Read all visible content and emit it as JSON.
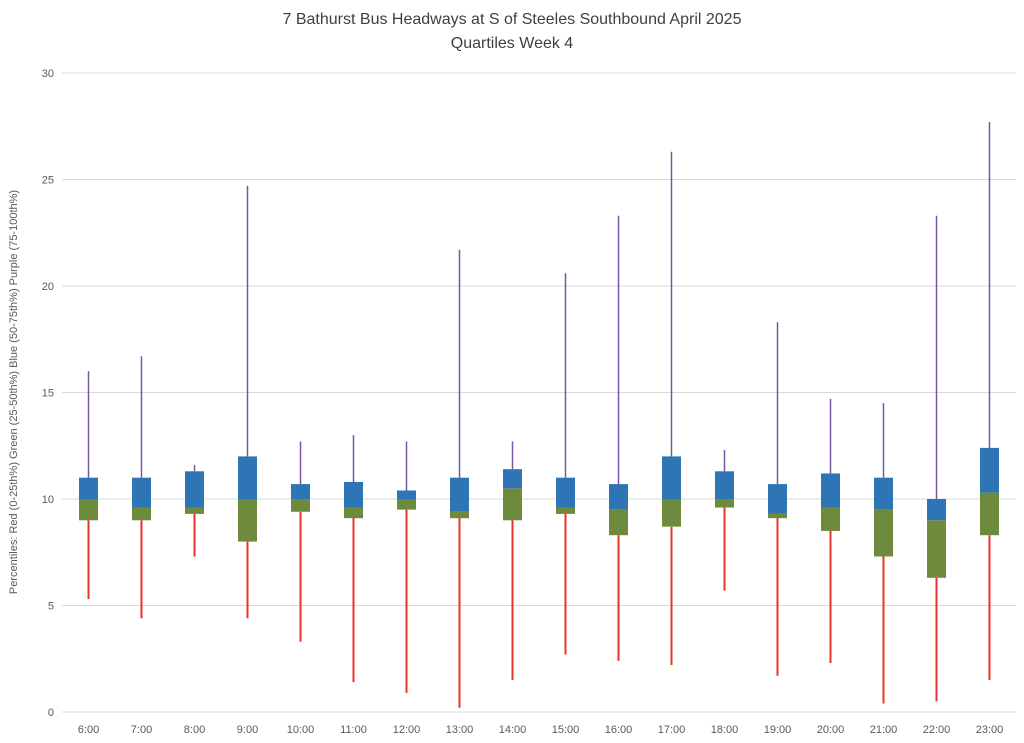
{
  "chart": {
    "title": "7 Bathurst Bus Headways at S of Steeles Southbound April 2025",
    "subtitle": "Quartiles Week 4",
    "ylabel": "Percentiles:  Red (0-25th%)  Green (25-50th%)  Blue (50-75th%)  Purple (75-100th%)"
  },
  "chart_data": {
    "type": "boxplot",
    "title": "7 Bathurst Bus Headways at S of Steeles Southbound April 2025",
    "subtitle": "Quartiles Week 4",
    "xlabel": "",
    "ylabel": "Percentiles:  Red (0-25th%)  Green (25-50th%)  Blue (50-75th%)  Purple (75-100th%)",
    "ylim": [
      0,
      30
    ],
    "yticks": [
      0,
      5,
      10,
      15,
      20,
      25,
      30
    ],
    "grid": true,
    "legend_position": "none",
    "categories": [
      "6:00",
      "7:00",
      "8:00",
      "9:00",
      "10:00",
      "11:00",
      "12:00",
      "13:00",
      "14:00",
      "15:00",
      "16:00",
      "17:00",
      "18:00",
      "19:00",
      "20:00",
      "21:00",
      "22:00",
      "23:00"
    ],
    "series": [
      {
        "key": "min",
        "name": "Minimum (red whisker bottom, 0th percentile)",
        "values": [
          5.3,
          4.4,
          7.3,
          4.4,
          3.3,
          1.4,
          0.9,
          0.2,
          1.5,
          2.7,
          2.4,
          2.2,
          5.7,
          1.7,
          2.3,
          0.4,
          0.5,
          1.5
        ]
      },
      {
        "key": "p25",
        "name": "25th percentile (box bottom)",
        "values": [
          9.0,
          9.0,
          9.3,
          8.0,
          9.4,
          9.1,
          9.5,
          9.1,
          9.0,
          9.3,
          8.3,
          8.7,
          9.6,
          9.1,
          8.5,
          7.3,
          6.3,
          8.3
        ]
      },
      {
        "key": "p50",
        "name": "Median (green/blue boundary)",
        "values": [
          10.0,
          9.6,
          9.6,
          10.0,
          10.0,
          9.6,
          10.0,
          9.4,
          10.5,
          9.6,
          9.5,
          10.0,
          10.0,
          9.3,
          9.6,
          9.5,
          9.0,
          10.3
        ]
      },
      {
        "key": "p75",
        "name": "75th percentile (box top)",
        "values": [
          11.0,
          11.0,
          11.3,
          12.0,
          10.7,
          10.8,
          10.4,
          11.0,
          11.4,
          11.0,
          10.7,
          12.0,
          11.3,
          10.7,
          11.2,
          11.0,
          10.0,
          12.4
        ]
      },
      {
        "key": "max",
        "name": "Maximum (purple whisker top, 100th percentile)",
        "values": [
          16.0,
          16.7,
          11.6,
          24.7,
          12.7,
          13.0,
          12.7,
          21.7,
          12.7,
          20.6,
          23.3,
          26.3,
          12.3,
          18.3,
          14.7,
          14.5,
          23.3,
          27.7
        ]
      }
    ],
    "colors": {
      "red_0_25": "#e8312a",
      "green_25_50": "#6e8b3d",
      "blue_50_75": "#2e75b6",
      "purple_75_100": "#7656a0",
      "gridline": "#d9d9d9",
      "title_text": "#404040",
      "axis_text": "#595959"
    }
  }
}
